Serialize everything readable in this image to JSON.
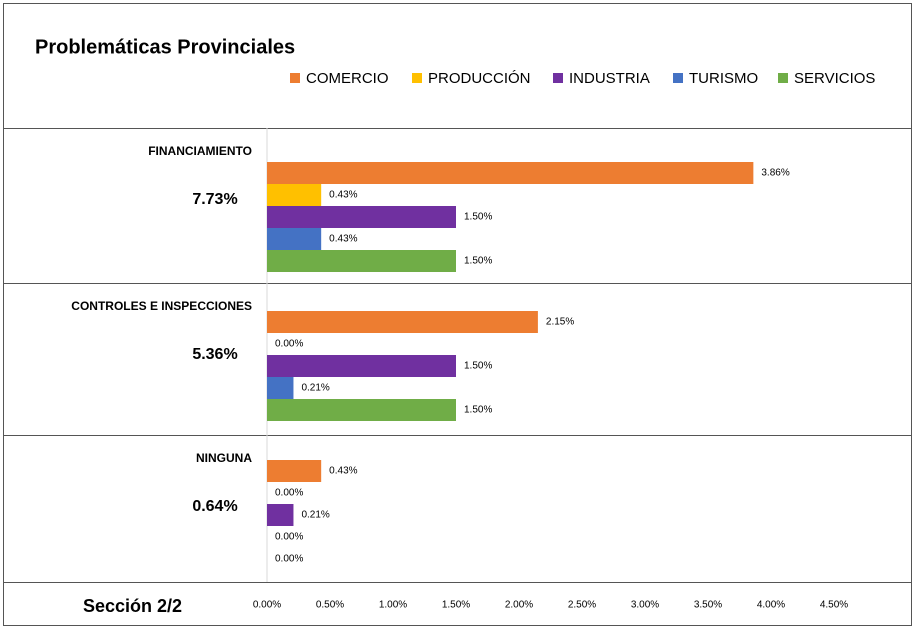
{
  "chart_data": {
    "type": "grouped-hbar",
    "title": "Problemáticas Provinciales",
    "footer": "Sección 2/2",
    "categories": [
      "FINANCIAMIENTO",
      "CONTROLES E INSPECCIONES",
      "NINGUNA"
    ],
    "totals": [
      7.73,
      5.36,
      0.64
    ],
    "total_labels": [
      "7.73%",
      "5.36%",
      "0.64%"
    ],
    "series": [
      {
        "name": "COMERCIO",
        "color": "#ed7d31",
        "values": [
          3.86,
          2.15,
          0.43
        ],
        "value_labels": [
          "3.86%",
          "2.15%",
          "0.43%"
        ]
      },
      {
        "name": "PRODUCCIÓN",
        "color": "#ffc000",
        "values": [
          0.43,
          0,
          0
        ],
        "value_labels": [
          "0.43%",
          "0.00%",
          "0.00%"
        ]
      },
      {
        "name": "INDUSTRIA",
        "color": "#7030a0",
        "values": [
          1.5,
          1.5,
          0.21
        ],
        "value_labels": [
          "1.50%",
          "1.50%",
          "0.21%"
        ]
      },
      {
        "name": "TURISMO",
        "color": "#4472c4",
        "values": [
          0.43,
          0.21,
          0
        ],
        "value_labels": [
          "0.43%",
          "0.21%",
          "0.00%"
        ]
      },
      {
        "name": "SERVICIOS",
        "color": "#70ad47",
        "values": [
          1.5,
          1.5,
          0
        ],
        "value_labels": [
          "1.50%",
          "1.50%",
          "0.00%"
        ]
      }
    ],
    "xlim": [
      0,
      4.5
    ],
    "xticks": [
      {
        "value": 0,
        "label": "0.00%"
      },
      {
        "value": 0.5,
        "label": "0.50%"
      },
      {
        "value": 1,
        "label": "1.00%"
      },
      {
        "value": 1.5,
        "label": "1.50%"
      },
      {
        "value": 2,
        "label": "2.00%"
      },
      {
        "value": 2.5,
        "label": "2.50%"
      },
      {
        "value": 3,
        "label": "3.00%"
      },
      {
        "value": 3.5,
        "label": "3.50%"
      },
      {
        "value": 4,
        "label": "4.00%"
      },
      {
        "value": 4.5,
        "label": "4.50%"
      }
    ],
    "grid": false
  }
}
